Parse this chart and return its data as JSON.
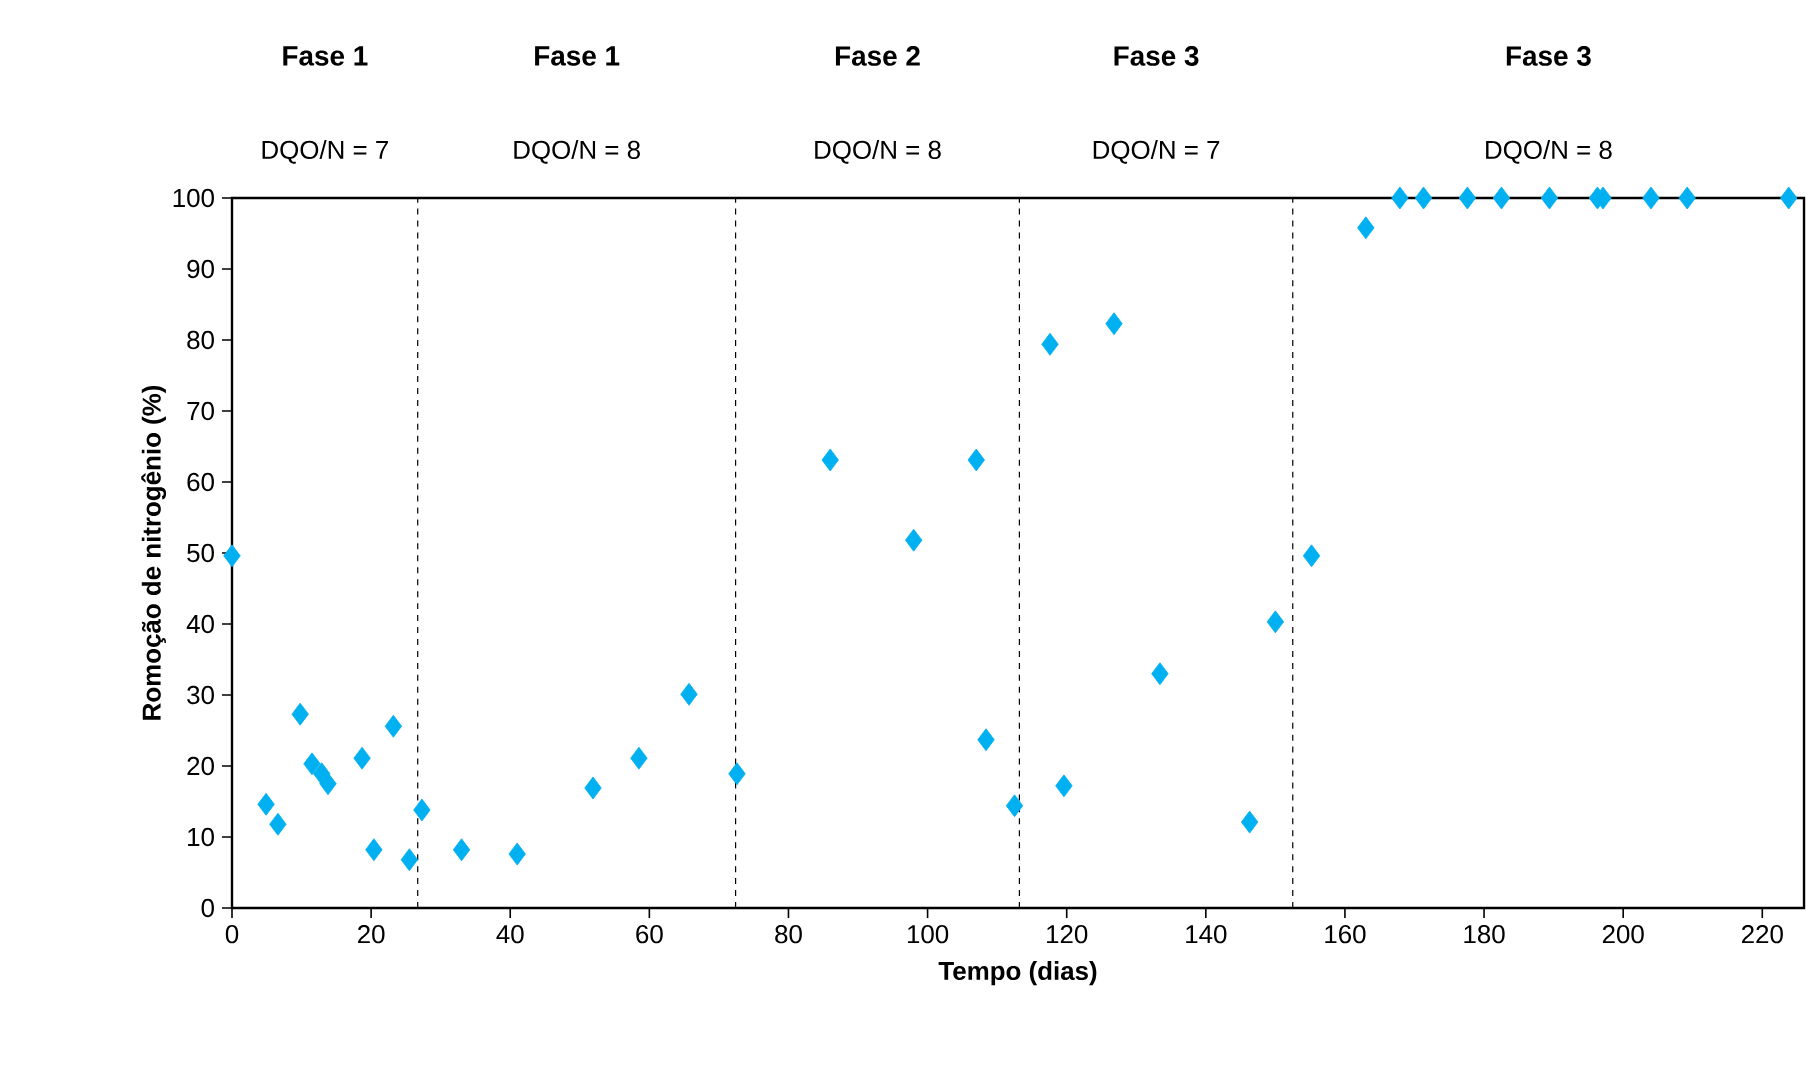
{
  "chart_data": {
    "type": "scatter",
    "xlabel": "Tempo (dias)",
    "ylabel": "Romoção de nitrogênio  (%)",
    "x": [
      0,
      4.9,
      6.6,
      9.8,
      11.5,
      12.9,
      13.8,
      18.7,
      20.4,
      23.2,
      25.5,
      27.3,
      33,
      41,
      51.9,
      58.5,
      65.7,
      72.6,
      86,
      98,
      107,
      108.4,
      112.5,
      117.6,
      119.6,
      126.8,
      133.4,
      146.3,
      150,
      155.2,
      163,
      167.9,
      171.3,
      177.6,
      182.5,
      189.4,
      196.3,
      197.1,
      204,
      209.2,
      223.8
    ],
    "values": [
      49.6,
      14.6,
      11.8,
      27.3,
      20.3,
      18.9,
      17.5,
      21.1,
      8.2,
      25.6,
      6.8,
      13.8,
      8.2,
      7.6,
      16.9,
      21.1,
      30.1,
      18.9,
      63.1,
      51.8,
      63.1,
      23.7,
      14.4,
      79.4,
      17.2,
      82.3,
      33.0,
      12.1,
      40.3,
      49.6,
      95.8,
      100,
      100,
      100,
      100,
      100,
      100,
      100,
      100,
      100,
      100
    ],
    "color": "#00b0f0",
    "marker": "diamond",
    "xlim": [
      0,
      226
    ],
    "ylim": [
      0,
      100
    ],
    "xticks": [
      0,
      20,
      40,
      60,
      80,
      100,
      120,
      140,
      160,
      180,
      200,
      220
    ],
    "yticks": [
      0,
      10,
      20,
      30,
      40,
      50,
      60,
      70,
      80,
      90,
      100
    ],
    "grid": false,
    "ref_lines": [
      {
        "axis": "x",
        "value": 26.7,
        "color": "#000000",
        "line_style": "dashed"
      },
      {
        "axis": "x",
        "value": 72.4,
        "color": "#000000",
        "line_style": "dashed"
      },
      {
        "axis": "x",
        "value": 113.2,
        "color": "#000000",
        "line_style": "dashed"
      },
      {
        "axis": "x",
        "value": 152.5,
        "color": "#000000",
        "line_style": "dashed"
      }
    ],
    "annotations": [
      "Fase 1",
      "Fase 1",
      "Fase 2",
      "Fase 3",
      "Fase 3",
      "DQO/N = 7",
      "DQO/N = 8",
      "DQO/N = 8",
      "DQO/N = 7",
      "DQO/N = 8"
    ]
  }
}
